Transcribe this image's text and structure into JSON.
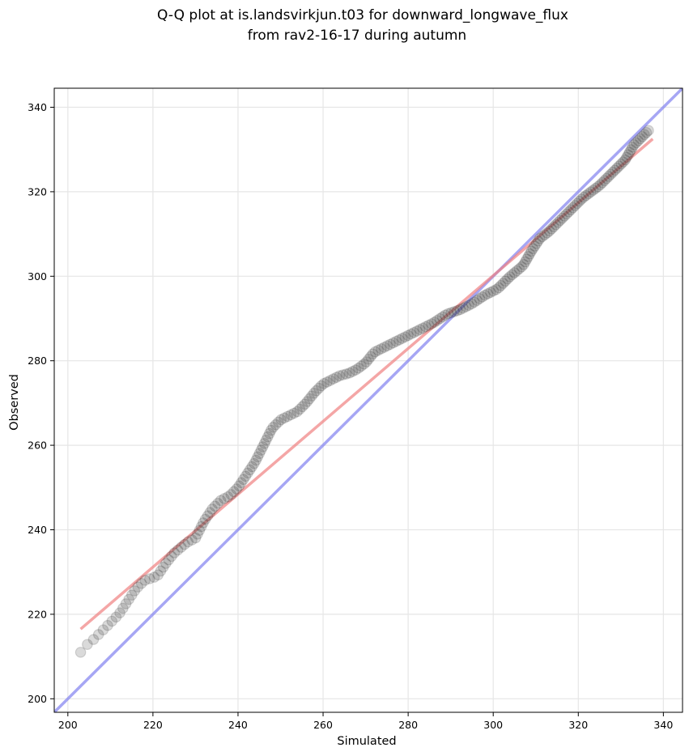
{
  "chart_data": {
    "type": "scatter",
    "title_lines": [
      "Q-Q plot at is.landsvirkjun.t03 for downward_longwave_flux",
      "from rav2-16-17 during autumn"
    ],
    "xlabel": "Simulated",
    "ylabel": "Observed",
    "xlim": [
      196.8,
      344.5
    ],
    "ylim": [
      196.8,
      344.5
    ],
    "xticks": [
      200,
      220,
      240,
      260,
      280,
      300,
      320,
      340
    ],
    "yticks": [
      200,
      220,
      240,
      260,
      280,
      300,
      320,
      340
    ],
    "xtick_labels": [
      "200",
      "220",
      "240",
      "260",
      "280",
      "300",
      "320",
      "340"
    ],
    "ytick_labels": [
      "200",
      "220",
      "240",
      "260",
      "280",
      "300",
      "320",
      "340"
    ],
    "grid": true,
    "colors": {
      "points": "#333333",
      "fit_line": "#f08080",
      "identity_line": "#8080f0"
    },
    "identity_line": {
      "label": "1:1",
      "x": [
        196.8,
        344.5
      ],
      "y": [
        196.8,
        344.5
      ]
    },
    "fit_line": {
      "label": "linear fit",
      "x": [
        203.0,
        337.5
      ],
      "y": [
        216.5,
        332.5
      ]
    },
    "quantile_anchors": [
      [
        203,
        211
      ],
      [
        203.5,
        212
      ],
      [
        206,
        214
      ],
      [
        208,
        216
      ],
      [
        210,
        218
      ],
      [
        212,
        220
      ],
      [
        214,
        223
      ],
      [
        216,
        226
      ],
      [
        218,
        228
      ],
      [
        221,
        229
      ],
      [
        223,
        232
      ],
      [
        225,
        234.5
      ],
      [
        228,
        237
      ],
      [
        230,
        238
      ],
      [
        232,
        242
      ],
      [
        234,
        245
      ],
      [
        236,
        247
      ],
      [
        238,
        248
      ],
      [
        240,
        250
      ],
      [
        242,
        253
      ],
      [
        244,
        256
      ],
      [
        246,
        260
      ],
      [
        248,
        264
      ],
      [
        250,
        266
      ],
      [
        252,
        267
      ],
      [
        254,
        268
      ],
      [
        256,
        270
      ],
      [
        258,
        272.5
      ],
      [
        260,
        274.5
      ],
      [
        262,
        275.5
      ],
      [
        264,
        276.5
      ],
      [
        266,
        277
      ],
      [
        268,
        278
      ],
      [
        270,
        279.5
      ],
      [
        272,
        282
      ],
      [
        274,
        283
      ],
      [
        276,
        284
      ],
      [
        278,
        285
      ],
      [
        280,
        286
      ],
      [
        283,
        287.5
      ],
      [
        286,
        289
      ],
      [
        289,
        291
      ],
      [
        292,
        292
      ],
      [
        295,
        293.5
      ],
      [
        298,
        295.5
      ],
      [
        301,
        297
      ],
      [
        304,
        300
      ],
      [
        307,
        302.5
      ],
      [
        309,
        306
      ],
      [
        311,
        309
      ],
      [
        313,
        310.5
      ],
      [
        315,
        312.5
      ],
      [
        317,
        314.5
      ],
      [
        319,
        316.5
      ],
      [
        321,
        318.5
      ],
      [
        323,
        320
      ],
      [
        325,
        321.5
      ],
      [
        327,
        323.5
      ],
      [
        329,
        325.5
      ],
      [
        331,
        327.5
      ],
      [
        333,
        331
      ],
      [
        335,
        333
      ],
      [
        336.5,
        334.5
      ]
    ],
    "n_points": 220
  }
}
